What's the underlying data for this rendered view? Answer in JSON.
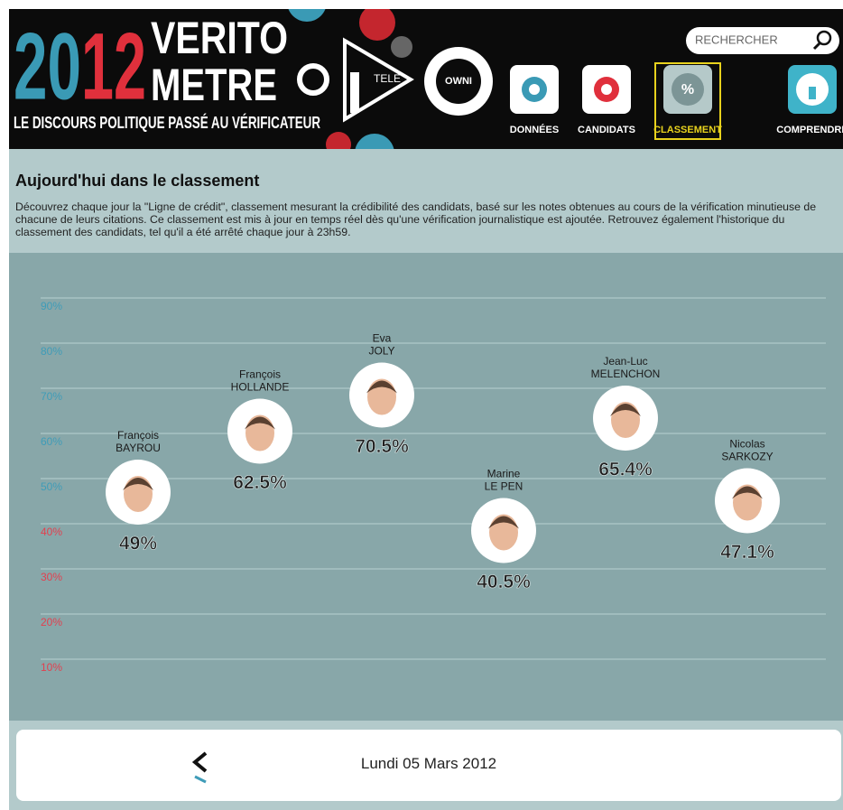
{
  "header": {
    "logo": {
      "year": [
        "20",
        "12"
      ],
      "lines": [
        "VERITO",
        "METRE"
      ],
      "tagline": "LE DISCOURS POLITIQUE PASSÉ AU VÉRIFICATEUR"
    },
    "partners": [
      "TELE",
      "OWNI"
    ],
    "search_placeholder": "RECHERCHER",
    "nav": [
      {
        "label": "DONNÉES"
      },
      {
        "label": "CANDIDATS"
      },
      {
        "label": "CLASSEMENT",
        "icon": "%",
        "active": true
      },
      {
        "label": "COMPRENDRE"
      }
    ]
  },
  "section": {
    "title": "Aujourd'hui dans le classement",
    "description": "Découvrez chaque jour la \"Ligne de crédit\", classement mesurant la crédibilité des candidats, basé sur les notes obtenues au cours de la vérification minutieuse de chacune de leurs citations. Ce classement est mis à jour en temps réel dès qu'une vérification journalistique est ajoutée. Retrouvez également l'historique du classement des candidats, tel qu'il a été arrêté chaque jour à 23h59."
  },
  "chart_data": {
    "type": "dot",
    "first_names": [
      "François",
      "François",
      "Eva",
      "Marine",
      "Jean-Luc",
      "Nicolas"
    ],
    "categories": [
      "BAYROU",
      "HOLLANDE",
      "JOLY",
      "LE PEN",
      "MELENCHON",
      "SARKOZY"
    ],
    "values": [
      49,
      62.5,
      70.5,
      40.5,
      65.4,
      47.1
    ],
    "value_labels": [
      "49%",
      "62.5%",
      "70.5%",
      "40.5%",
      "65.4%",
      "47.1%"
    ],
    "color": "#ffffff",
    "ylim": [
      0,
      100
    ],
    "yticks": [
      {
        "value": 10,
        "label": "10%"
      },
      {
        "value": 20,
        "label": "20%"
      },
      {
        "value": 30,
        "label": "30%"
      },
      {
        "value": 40,
        "label": "40%"
      },
      {
        "value": 50,
        "label": "50%"
      },
      {
        "value": 60,
        "label": "60%"
      },
      {
        "value": 70,
        "label": "70%"
      },
      {
        "value": 80,
        "label": "80%"
      },
      {
        "value": 90,
        "label": "90%"
      }
    ],
    "ytick_colors": [
      "#e2404f",
      "#e2404f",
      "#e2404f",
      "#e2404f",
      "#3f9cb8",
      "#3f9cb8",
      "#3f9cb8",
      "#3f9cb8",
      "#3f9cb8"
    ],
    "grid": true
  },
  "footer": {
    "date": "Lundi 05 Mars 2012"
  }
}
